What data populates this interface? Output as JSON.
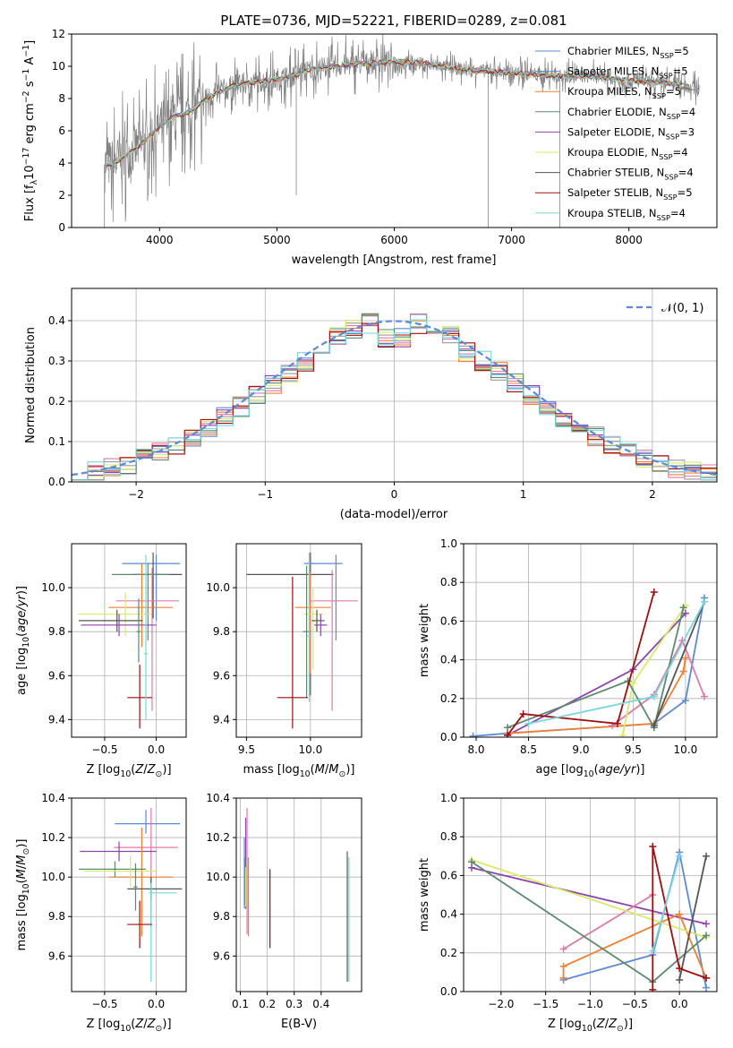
{
  "colors": {
    "spectrum": "#808080",
    "gauss": "#5b8ad6",
    "models": [
      "#5b8ad6",
      "#8e44ad",
      "#f08030",
      "#e07aa8",
      "#9b9b9b",
      "#d9e96a",
      "#5b8a6e",
      "#a00d0d",
      "#78d6dc"
    ]
  },
  "chart_data": [
    {
      "id": "spectrum",
      "type": "line",
      "title": "PLATE=0736, MJD=52221, FIBERID=0289, z=0.081",
      "xlabel": "wavelength [Angstrom, rest frame]",
      "ylabel": "Flux [f_λ10^-17 erg cm^-2 s^-1 A^-1]",
      "xlim": [
        3250,
        8750
      ],
      "ylim": [
        0,
        12
      ],
      "xticks": [
        4000,
        5000,
        6000,
        7000,
        8000
      ],
      "yticks": [
        0,
        2,
        4,
        6,
        8,
        10,
        12
      ],
      "grid": false,
      "legend_position": "top-right",
      "legend": [
        "Chabrier MILES, N_SSP=5",
        "Salpeter MILES, N_SSP=5",
        "Kroupa MILES, N_SSP=5",
        "Chabrier ELODIE, N_SSP=4",
        "Salpeter ELODIE, N_SSP=3",
        "Kroupa ELODIE, N_SSP=4",
        "Chabrier STELIB, N_SSP=4",
        "Salpeter STELIB, N_SSP=5",
        "Kroupa STELIB, N_SSP=4"
      ],
      "legend_colors": [
        "#5b8ad6",
        "#5b8ad6",
        "#f08030",
        "#5b8a6e",
        "#8e44ad",
        "#d9e96a",
        "#555555",
        "#a00d0d",
        "#78d6dc"
      ],
      "continuum": {
        "x": [
          3530,
          3600,
          3700,
          3800,
          3900,
          4000,
          4100,
          4200,
          4300,
          4400,
          4500,
          4600,
          4700,
          4800,
          4900,
          5000,
          5100,
          5200,
          5300,
          5400,
          5500,
          5600,
          5800,
          6000,
          6200,
          6400,
          6600,
          6800,
          7000,
          7200,
          7400,
          7600,
          7800,
          8000,
          8200,
          8400,
          8600
        ],
        "y": [
          3.9,
          4.0,
          4.4,
          4.9,
          5.5,
          6.3,
          6.8,
          7.0,
          7.4,
          8.0,
          8.4,
          8.7,
          8.9,
          9.0,
          9.1,
          9.2,
          9.3,
          9.6,
          9.8,
          9.9,
          10.0,
          10.1,
          10.2,
          10.3,
          10.2,
          10.0,
          9.8,
          9.7,
          9.6,
          9.5,
          9.4,
          9.4,
          9.3,
          9.1,
          9.0,
          8.9,
          8.6
        ]
      }
    },
    {
      "id": "residuals",
      "type": "line",
      "xlabel": "(data-model)/error",
      "ylabel": "Normed distribution",
      "xlim": [
        -2.5,
        2.5
      ],
      "ylim": [
        0,
        0.48
      ],
      "xticks": [
        -2,
        -1,
        0,
        1,
        2
      ],
      "yticks": [
        0.0,
        0.1,
        0.2,
        0.3,
        0.4
      ],
      "grid": true,
      "legend_position": "top-right",
      "legend": [
        "𝒩(0, 1)"
      ],
      "bins": 40
    },
    {
      "id": "age-vs-Z",
      "type": "scatter",
      "xlabel": "Z [log10(Z/Z⊙)]",
      "ylabel": "age  [log10(age/yr)]",
      "xlim": [
        -0.82,
        0.29
      ],
      "ylim": [
        9.32,
        10.2
      ],
      "xticks": [
        -0.5,
        0.0
      ],
      "yticks": [
        9.4,
        9.6,
        9.8,
        10.0
      ],
      "grid": true,
      "errorbars": [
        {
          "x": 0.0,
          "y": 10.11,
          "xerr": [
            0.33,
            0.23
          ],
          "yerr": [
            0.26,
            0.04
          ],
          "color": "#5b8ad6"
        },
        {
          "x": -0.03,
          "y": 10.06,
          "xerr": [
            0.2,
            0.28
          ],
          "yerr": [
            0.2,
            0.1
          ],
          "color": "#555555"
        },
        {
          "x": -0.08,
          "y": 10.06,
          "xerr": [
            0.35,
            0.2
          ],
          "yerr": [
            0.3,
            0.05
          ],
          "color": "#5b8a6e"
        },
        {
          "x": -0.04,
          "y": 9.94,
          "xerr": [
            0.35,
            0.26
          ],
          "yerr": [
            0.5,
            0.15
          ],
          "color": "#e07aa8"
        },
        {
          "x": -0.14,
          "y": 9.91,
          "xerr": [
            0.32,
            0.3
          ],
          "yerr": [
            0.18,
            0.2
          ],
          "color": "#f08030"
        },
        {
          "x": -0.3,
          "y": 9.88,
          "xerr": [
            0.46,
            0.25
          ],
          "yerr": [
            0.1,
            0.1
          ],
          "color": "#d9e96a"
        },
        {
          "x": -0.38,
          "y": 9.85,
          "xerr": [
            0.37,
            0.25
          ],
          "yerr": [
            0.05,
            0.05
          ],
          "color": "#555555"
        },
        {
          "x": -0.36,
          "y": 9.83,
          "xerr": [
            0.37,
            0.36
          ],
          "yerr": [
            0.05,
            0.05
          ],
          "color": "#8e44ad"
        },
        {
          "x": -0.17,
          "y": 9.8,
          "xerr": [
            0.02,
            0.02
          ],
          "yerr": [
            0.14,
            0.15
          ],
          "color": "#5b8a6e"
        },
        {
          "x": -0.16,
          "y": 9.5,
          "xerr": [
            0.12,
            0.12
          ],
          "yerr": [
            0.14,
            0.15
          ],
          "color": "#a00d0d"
        },
        {
          "x": -0.1,
          "y": 9.7,
          "xerr": [
            0.02,
            0.02
          ],
          "yerr": [
            0.3,
            0.45
          ],
          "color": "#78d6dc"
        }
      ]
    },
    {
      "id": "age-vs-mass",
      "type": "scatter",
      "xlabel": "mass [log10(M/M⊙)]",
      "ylabel": "",
      "xlim": [
        9.42,
        10.4
      ],
      "ylim": [
        9.32,
        10.2
      ],
      "xticks": [
        9.5,
        10.0
      ],
      "yticks": [
        9.4,
        9.6,
        9.8,
        10.0
      ],
      "grid": true,
      "errorbars": [
        {
          "x": 10.0,
          "y": 10.06,
          "xerr": [
            0.5,
            0.18
          ],
          "yerr": [
            0.55,
            0.1
          ],
          "color": "#555555"
        },
        {
          "x": 10.2,
          "y": 10.11,
          "xerr": [
            0.25,
            0.05
          ],
          "yerr": [
            0.35,
            0.04
          ],
          "color": "#5b8ad6"
        },
        {
          "x": 10.17,
          "y": 9.94,
          "xerr": [
            0.18,
            0.2
          ],
          "yerr": [
            0.5,
            0.14
          ],
          "color": "#e07aa8"
        },
        {
          "x": 10.0,
          "y": 9.91,
          "xerr": [
            0.12,
            0.16
          ],
          "yerr": [
            0.3,
            0.16
          ],
          "color": "#f08030"
        },
        {
          "x": 10.02,
          "y": 9.88,
          "xerr": [
            0.07,
            0.08
          ],
          "yerr": [
            0.25,
            0.12
          ],
          "color": "#d9e96a"
        },
        {
          "x": 10.05,
          "y": 9.85,
          "xerr": [
            0.04,
            0.06
          ],
          "yerr": [
            0.05,
            0.05
          ],
          "color": "#555555"
        },
        {
          "x": 10.08,
          "y": 9.83,
          "xerr": [
            0.05,
            0.05
          ],
          "yerr": [
            0.05,
            0.05
          ],
          "color": "#8e44ad"
        },
        {
          "x": 9.97,
          "y": 9.8,
          "xerr": [
            0.03,
            0.03
          ],
          "yerr": [
            0.3,
            0.3
          ],
          "color": "#5b8a6e"
        },
        {
          "x": 9.86,
          "y": 9.5,
          "xerr": [
            0.12,
            0.12
          ],
          "yerr": [
            0.14,
            0.55
          ],
          "color": "#a00d0d"
        },
        {
          "x": 9.99,
          "y": 9.78,
          "xerr": [
            0.02,
            0.02
          ],
          "yerr": [
            0.3,
            0.38
          ],
          "color": "#78d6dc"
        }
      ]
    },
    {
      "id": "weight-vs-age",
      "type": "line",
      "xlabel": "age  [log10(age/yr)]",
      "ylabel": "mass weight",
      "xlim": [
        7.88,
        10.3
      ],
      "ylim": [
        0,
        1
      ],
      "xticks": [
        8.0,
        8.5,
        9.0,
        9.5,
        10.0
      ],
      "yticks": [
        0.0,
        0.2,
        0.4,
        0.6,
        0.8,
        1.0
      ],
      "grid": true,
      "series": [
        {
          "color": "#5b8ad6",
          "x": [
            7.97,
            8.3,
            9.7,
            10.0,
            10.18
          ],
          "y": [
            0.005,
            0.02,
            0.07,
            0.19,
            0.72
          ]
        },
        {
          "color": "#8e44ad",
          "x": [
            8.3,
            9.5,
            10.0
          ],
          "y": [
            0.01,
            0.35,
            0.64
          ]
        },
        {
          "color": "#f08030",
          "x": [
            8.3,
            9.7,
            9.98,
            10.0
          ],
          "y": [
            0.02,
            0.07,
            0.34,
            0.41
          ]
        },
        {
          "color": "#e07aa8",
          "x": [
            9.3,
            9.7,
            9.97,
            10.18
          ],
          "y": [
            0.06,
            0.22,
            0.5,
            0.21
          ]
        },
        {
          "color": "#d9e96a",
          "x": [
            9.4,
            9.5,
            10.0
          ],
          "y": [
            0.01,
            0.28,
            0.68
          ]
        },
        {
          "color": "#5b8a6e",
          "x": [
            8.3,
            9.45,
            9.7,
            9.98
          ],
          "y": [
            0.05,
            0.29,
            0.05,
            0.67
          ]
        },
        {
          "color": "#555555",
          "x": [
            9.7,
            10.18
          ],
          "y": [
            0.06,
            0.7
          ]
        },
        {
          "color": "#a00d0d",
          "x": [
            8.3,
            8.45,
            9.35,
            9.7
          ],
          "y": [
            0.01,
            0.12,
            0.07,
            0.75
          ]
        },
        {
          "color": "#78d6dc",
          "x": [
            8.5,
            9.7,
            10.18
          ],
          "y": [
            0.07,
            0.21,
            0.7
          ]
        }
      ]
    },
    {
      "id": "mass-vs-Z",
      "type": "scatter",
      "xlabel": "Z [log10(Z/Z⊙)]",
      "ylabel": "mass [log10(M/M⊙)]",
      "xlim": [
        -0.82,
        0.29
      ],
      "ylim": [
        9.42,
        10.4
      ],
      "xticks": [
        -0.5,
        0.0
      ],
      "yticks": [
        9.6,
        9.8,
        10.0,
        10.2,
        10.4
      ],
      "grid": true,
      "errorbars": [
        {
          "x": -0.1,
          "y": 10.27,
          "xerr": [
            0.3,
            0.33
          ],
          "yerr": [
            0.05,
            0.07
          ],
          "color": "#5b8ad6"
        },
        {
          "x": -0.05,
          "y": 10.15,
          "xerr": [
            0.36,
            0.26
          ],
          "yerr": [
            0.4,
            0.2
          ],
          "color": "#e07aa8"
        },
        {
          "x": -0.36,
          "y": 10.13,
          "xerr": [
            0.38,
            0.36
          ],
          "yerr": [
            0.05,
            0.05
          ],
          "color": "#8e44ad"
        },
        {
          "x": -0.14,
          "y": 10.0,
          "xerr": [
            0.32,
            0.3
          ],
          "yerr": [
            0.3,
            0.25
          ],
          "color": "#f08030"
        },
        {
          "x": -0.4,
          "y": 10.04,
          "xerr": [
            0.35,
            0.3
          ],
          "yerr": [
            0.04,
            0.04
          ],
          "color": "#5b8a6e"
        },
        {
          "x": -0.25,
          "y": 10.03,
          "xerr": [
            0.45,
            0.25
          ],
          "yerr": [
            0.08,
            0.08
          ],
          "color": "#d9e96a"
        },
        {
          "x": -0.05,
          "y": 9.94,
          "xerr": [
            0.23,
            0.3
          ],
          "yerr": [
            0.06,
            0.06
          ],
          "color": "#555555"
        },
        {
          "x": -0.05,
          "y": 9.92,
          "xerr": [
            0.02,
            0.25
          ],
          "yerr": [
            0.45,
            0.05
          ],
          "color": "#78d6dc"
        },
        {
          "x": -0.16,
          "y": 9.76,
          "xerr": [
            0.12,
            0.12
          ],
          "yerr": [
            0.12,
            0.12
          ],
          "color": "#a00d0d"
        },
        {
          "x": -0.2,
          "y": 9.95,
          "xerr": [
            0.02,
            0.02
          ],
          "yerr": [
            0.12,
            0.12
          ],
          "color": "#5b8a6e"
        }
      ]
    },
    {
      "id": "mass-vs-ebv",
      "type": "scatter",
      "xlabel": "E(B-V)",
      "ylabel": "",
      "xlim": [
        0.085,
        0.55
      ],
      "ylim": [
        9.42,
        10.4
      ],
      "xticks": [
        0.1,
        0.2,
        0.3,
        0.4
      ],
      "yticks": [
        9.6,
        9.8,
        10.0,
        10.2,
        10.4
      ],
      "grid": true,
      "errorbars": [
        {
          "x": 0.115,
          "y": 10.02,
          "yerr": [
            0.18,
            0.18
          ],
          "color": "#5b8ad6"
        },
        {
          "x": 0.12,
          "y": 10.0,
          "yerr": [
            0.16,
            0.3
          ],
          "color": "#8e44ad"
        },
        {
          "x": 0.125,
          "y": 10.03,
          "yerr": [
            0.32,
            0.32
          ],
          "color": "#e07aa8"
        },
        {
          "x": 0.118,
          "y": 9.98,
          "yerr": [
            0.12,
            0.12
          ],
          "color": "#5b8a6e"
        },
        {
          "x": 0.12,
          "y": 9.95,
          "yerr": [
            0.1,
            0.1
          ],
          "color": "#d9e96a"
        },
        {
          "x": 0.13,
          "y": 9.9,
          "yerr": [
            0.2,
            0.2
          ],
          "color": "#f08030"
        },
        {
          "x": 0.21,
          "y": 9.84,
          "yerr": [
            0.2,
            0.2
          ],
          "color": "#a00d0d"
        },
        {
          "x": 0.497,
          "y": 9.8,
          "yerr": [
            0.33,
            0.33
          ],
          "color": "#555555"
        },
        {
          "x": 0.503,
          "y": 9.8,
          "yerr": [
            0.33,
            0.3
          ],
          "color": "#78d6dc"
        }
      ]
    },
    {
      "id": "weight-vs-Z",
      "type": "line",
      "xlabel": "Z [log10(Z/Z⊙)]",
      "ylabel": "mass weight",
      "xlim": [
        -2.42,
        0.42
      ],
      "ylim": [
        0,
        1
      ],
      "xticks": [
        -2.0,
        -1.5,
        -1.0,
        -0.5,
        0.0
      ],
      "yticks": [
        0.0,
        0.2,
        0.4,
        0.6,
        0.8,
        1.0
      ],
      "grid": true,
      "series": [
        {
          "color": "#5b8ad6",
          "x": [
            -1.3,
            -0.3,
            0.0,
            0.3
          ],
          "y": [
            0.06,
            0.19,
            0.72,
            0.02
          ]
        },
        {
          "color": "#8e44ad",
          "x": [
            -2.33,
            0.3
          ],
          "y": [
            0.64,
            0.35
          ]
        },
        {
          "color": "#f08030",
          "x": [
            -1.3,
            -1.3,
            0.0,
            0.3
          ],
          "y": [
            0.07,
            0.13,
            0.4,
            0.07
          ]
        },
        {
          "color": "#e07aa8",
          "x": [
            -1.3,
            -0.3
          ],
          "y": [
            0.22,
            0.5
          ]
        },
        {
          "color": "#d9e96a",
          "x": [
            -2.33,
            0.3
          ],
          "y": [
            0.68,
            0.28
          ]
        },
        {
          "color": "#5b8a6e",
          "x": [
            -2.33,
            -0.3,
            0.3
          ],
          "y": [
            0.67,
            0.05,
            0.29
          ]
        },
        {
          "color": "#555555",
          "x": [
            0.0,
            0.3
          ],
          "y": [
            0.06,
            0.7
          ]
        },
        {
          "color": "#a00d0d",
          "x": [
            -0.3,
            -0.3,
            0.0,
            0.3
          ],
          "y": [
            0.01,
            0.75,
            0.12,
            0.07
          ]
        },
        {
          "color": "#78d6dc",
          "x": [
            -0.3,
            0.0
          ],
          "y": [
            0.21,
            0.7
          ]
        }
      ]
    }
  ]
}
